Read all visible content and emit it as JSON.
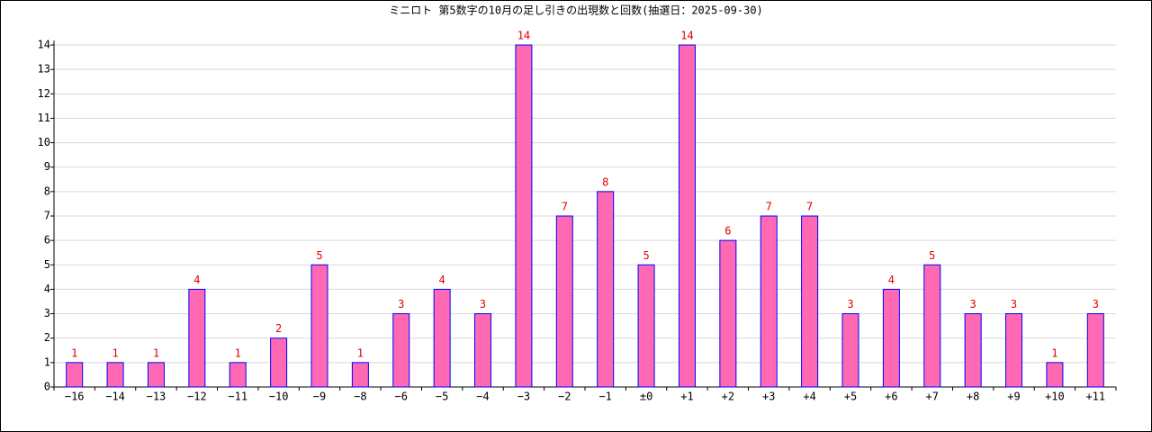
{
  "chart_data": {
    "type": "bar",
    "title": "ミニロト 第5数字の10月の足し引きの出現数と回数(抽選日：2025-09-30)",
    "categories": [
      "−16",
      "−14",
      "−13",
      "−12",
      "−11",
      "−10",
      "−9",
      "−8",
      "−6",
      "−5",
      "−4",
      "−3",
      "−2",
      "−1",
      "±0",
      "+1",
      "+2",
      "+3",
      "+4",
      "+5",
      "+6",
      "+7",
      "+8",
      "+9",
      "+10",
      "+11"
    ],
    "values": [
      1,
      1,
      1,
      4,
      1,
      2,
      5,
      1,
      3,
      4,
      3,
      14,
      7,
      8,
      5,
      14,
      6,
      7,
      7,
      3,
      4,
      5,
      3,
      3,
      1,
      3
    ],
    "color": "#ff69b4",
    "edge_color": "#0000ff",
    "label_color": "#e00000",
    "ylim": [
      0,
      14
    ],
    "yticks": [
      0,
      1,
      2,
      3,
      4,
      5,
      6,
      7,
      8,
      9,
      10,
      11,
      12,
      13,
      14
    ],
    "grid": true
  }
}
